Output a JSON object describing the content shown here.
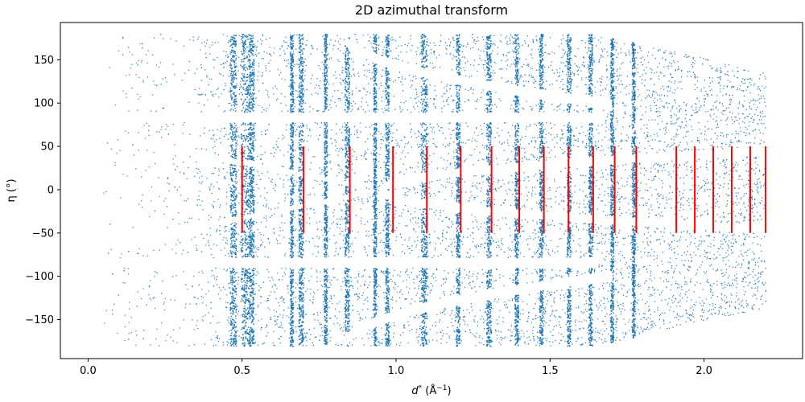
{
  "chart_data": {
    "type": "scatter",
    "title": "2D azimuthal transform",
    "xlabel_main": "d",
    "xlabel_sup": "*",
    "xlabel_unit": " (Å",
    "xlabel_unit_sup": "−1",
    "xlabel_close": ")",
    "ylabel": "η (°)",
    "xlim": [
      -0.09,
      2.32
    ],
    "ylim": [
      -195,
      193
    ],
    "xticks": [
      {
        "value": 0.0,
        "label": "0.0"
      },
      {
        "value": 0.5,
        "label": "0.5"
      },
      {
        "value": 1.0,
        "label": "1.0"
      },
      {
        "value": 1.5,
        "label": "1.5"
      },
      {
        "value": 2.0,
        "label": "2.0"
      }
    ],
    "yticks": [
      {
        "value": 150,
        "label": "150"
      },
      {
        "value": 100,
        "label": "100"
      },
      {
        "value": 50,
        "label": "50"
      },
      {
        "value": 0,
        "label": "0"
      },
      {
        "value": -50,
        "label": "−50"
      },
      {
        "value": -100,
        "label": "−100"
      },
      {
        "value": -150,
        "label": "−150"
      }
    ],
    "colors": {
      "points": "#1f77b4",
      "error_bars": "#ff0000"
    },
    "scatter_extent": {
      "d_min": 0.05,
      "d_max": 2.2,
      "eta_min": -180,
      "eta_max": 180
    },
    "dense_bands": [
      {
        "d": 0.47,
        "width": 0.02
      },
      {
        "d": 0.51,
        "width": 0.03
      },
      {
        "d": 0.53,
        "width": 0.015
      },
      {
        "d": 0.66,
        "width": 0.01
      },
      {
        "d": 0.69,
        "width": 0.015
      },
      {
        "d": 0.77,
        "width": 0.01
      },
      {
        "d": 0.84,
        "width": 0.015
      },
      {
        "d": 0.93,
        "width": 0.01
      },
      {
        "d": 0.97,
        "width": 0.012
      },
      {
        "d": 1.09,
        "width": 0.02
      },
      {
        "d": 1.2,
        "width": 0.012
      },
      {
        "d": 1.3,
        "width": 0.015
      },
      {
        "d": 1.39,
        "width": 0.012
      },
      {
        "d": 1.47,
        "width": 0.012
      },
      {
        "d": 1.56,
        "width": 0.012
      },
      {
        "d": 1.63,
        "width": 0.012
      },
      {
        "d": 1.7,
        "width": 0.01
      },
      {
        "d": 1.77,
        "width": 0.01
      }
    ],
    "error_bars": {
      "half_height": 50,
      "x": [
        0.5,
        0.7,
        0.85,
        0.99,
        1.1,
        1.21,
        1.31,
        1.4,
        1.48,
        1.56,
        1.64,
        1.71,
        1.78,
        1.91,
        1.97,
        2.03,
        2.09,
        2.15,
        2.2
      ]
    }
  }
}
